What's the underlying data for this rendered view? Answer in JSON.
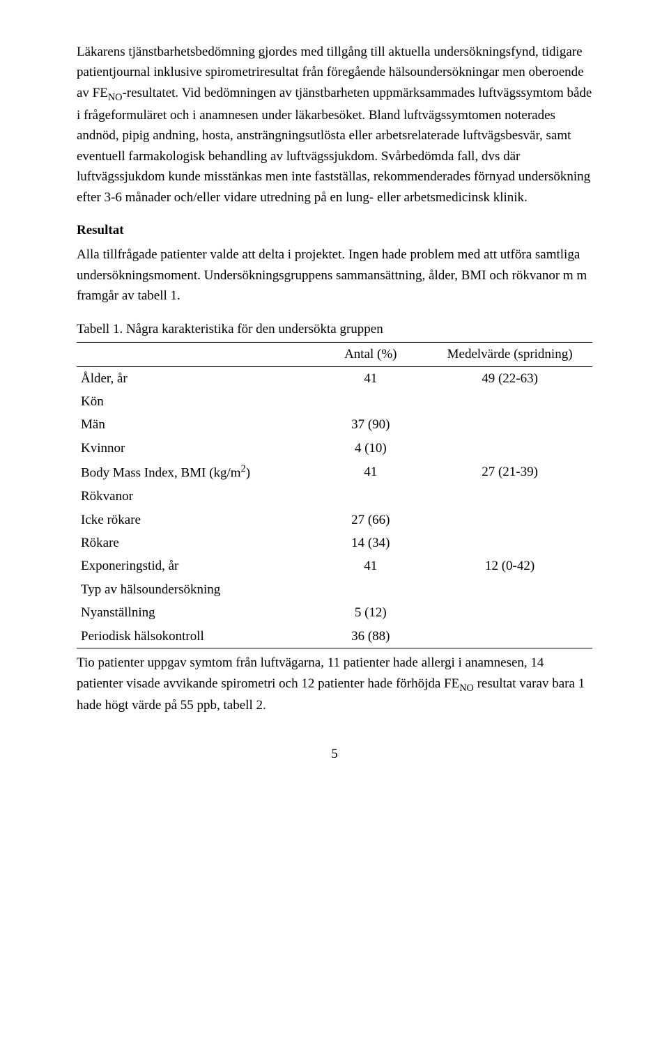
{
  "typography": {
    "font_family": "Times New Roman",
    "body_fontsize_pt": 14,
    "line_height": 1.55,
    "text_color": "#000000",
    "background_color": "#ffffff"
  },
  "paragraphs": {
    "p1a": "Läkarens tjänstbarhetsbedömning gjordes med tillgång till aktuella undersökningsfynd, tidigare patientjournal inklusive spirometriresultat från föregående hälsoundersökningar men oberoende av FE",
    "p1_sub1": "NO",
    "p1b": "-resultatet. Vid bedömningen av tjänstbarheten uppmärksammades luftvägssymtom både i frågeformuläret och i anamnesen under läkarbesöket. Bland luftvägssymtomen noterades andnöd, pipig andning, hosta, ansträngningsutlösta eller arbetsrelaterade luftvägsbesvär, samt eventuell farmakologisk behandling av luftvägssjukdom. Svårbedömda fall, dvs där luftvägssjukdom kunde misstänkas men inte fastställas, rekommenderades förnyad undersökning efter 3-6 månader och/eller vidare utredning på en lung- eller arbetsmedicinsk klinik.",
    "resultat_head": "Resultat",
    "p2": "Alla tillfrågade patienter valde att delta i projektet. Ingen hade problem med att utföra samtliga undersökningsmoment. Undersökningsgruppens sammansättning, ålder, BMI och rökvanor m m framgår av tabell 1.",
    "table_caption": "Tabell 1. Några karakteristika för den undersökta gruppen",
    "p3a": "Tio patienter uppgav symtom från luftvägarna, 11 patienter hade allergi i anamnesen, 14 patienter visade avvikande spirometri och 12 patienter hade förhöjda FE",
    "p3_sub1": "NO",
    "p3b": " resultat varav bara 1 hade högt värde på 55 ppb, tabell 2."
  },
  "table1": {
    "type": "table",
    "border_color": "#000000",
    "columns": [
      {
        "key": "label",
        "header": "",
        "align": "left",
        "width_pct": 46
      },
      {
        "key": "antal",
        "header": "Antal (%)",
        "align": "center",
        "width_pct": 22
      },
      {
        "key": "medel",
        "header": "Medelvärde (spridning)",
        "align": "center",
        "width_pct": 32
      }
    ],
    "rows": [
      {
        "label": "Ålder, år",
        "antal": "41",
        "medel": "49 (22-63)",
        "indent": false
      },
      {
        "label": "Kön",
        "antal": "",
        "medel": "",
        "indent": false
      },
      {
        "label": "Män",
        "antal": "37 (90)",
        "medel": "",
        "indent": true
      },
      {
        "label": "Kvinnor",
        "antal": "4 (10)",
        "medel": "",
        "indent": true
      },
      {
        "label_html": "Body Mass Index, BMI (kg/m<sup>2</sup>)",
        "label": "Body Mass Index, BMI (kg/m2)",
        "antal": "41",
        "medel": "27 (21-39)",
        "indent": false
      },
      {
        "label": "Rökvanor",
        "antal": "",
        "medel": "",
        "indent": false
      },
      {
        "label": "Icke rökare",
        "antal": "27 (66)",
        "medel": "",
        "indent": true
      },
      {
        "label": "Rökare",
        "antal": "14 (34)",
        "medel": "",
        "indent": true
      },
      {
        "label": "Exponeringstid, år",
        "antal": "41",
        "medel": "12 (0-42)",
        "indent": false
      },
      {
        "label": "Typ av hälsoundersökning",
        "antal": "",
        "medel": "",
        "indent": false
      },
      {
        "label": "Nyanställning",
        "antal": "5 (12)",
        "medel": "",
        "indent": true
      },
      {
        "label": "Periodisk hälsokontroll",
        "antal": "36 (88)",
        "medel": "",
        "indent": true
      }
    ]
  },
  "page_number": "5"
}
